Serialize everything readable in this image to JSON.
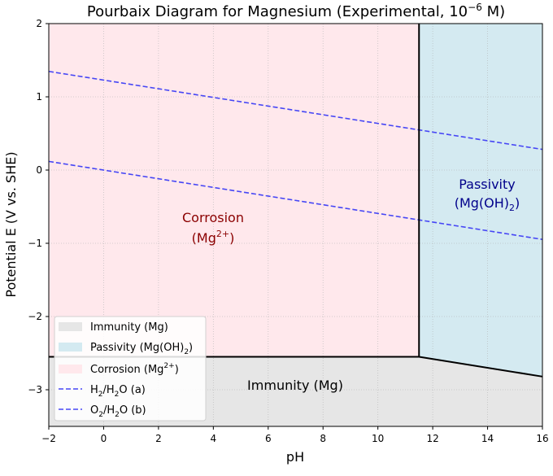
{
  "chart_data": {
    "type": "area",
    "title": {
      "main": "Pourbaix Diagram for Magnesium (Experimental, 10",
      "sup": "−6",
      "tail": " M)"
    },
    "xlabel": "pH",
    "ylabel": "Potential E (V vs. SHE)",
    "xlim": [
      -2,
      16
    ],
    "ylim": [
      -3.5,
      2
    ],
    "xticks": [
      -2,
      0,
      2,
      4,
      6,
      8,
      10,
      12,
      14,
      16
    ],
    "yticks": [
      -3,
      -2,
      -1,
      0,
      1,
      2
    ],
    "grid": true,
    "colors": {
      "immunity": "#e6e6e6",
      "passivity": "#d4eaf1",
      "corrosion": "#ffe8ec",
      "water_line": "#4646f5",
      "boundary": "#000000",
      "corrosion_text": "#8b0000",
      "passivity_text": "#00008b"
    },
    "boundaries": {
      "mg_mg2_E": -2.55,
      "hydrolysis_pH": 11.5,
      "mg_mgoh2_line": [
        [
          11.5,
          -2.55
        ],
        [
          16,
          -2.82
        ]
      ]
    },
    "series": [
      {
        "name": "H2/H2O (a)",
        "x": [
          -2,
          16
        ],
        "y": [
          0.118,
          -0.947
        ]
      },
      {
        "name": "O2/H2O (b)",
        "x": [
          -2,
          16
        ],
        "y": [
          1.347,
          0.282
        ]
      }
    ],
    "regions": {
      "corrosion": {
        "label": "Corrosion",
        "species": "(Mg",
        "sup": "2+",
        "close": ")"
      },
      "passivity": {
        "label": "Passivity",
        "species": "(Mg(OH)",
        "sub": "2",
        "close": ")"
      },
      "immunity": {
        "label": "Immunity (Mg)"
      }
    },
    "legend": {
      "placement": "lower-left",
      "entries": [
        {
          "text": "Immunity (Mg)",
          "kind": "patch",
          "color": "#e6e6e6"
        },
        {
          "text": "Passivity (Mg(OH)",
          "sub": "2",
          "tail": ")",
          "kind": "patch",
          "color": "#d4eaf1"
        },
        {
          "text": "Corrosion (Mg",
          "sup": "2+",
          "tail": ")",
          "kind": "patch",
          "color": "#ffe8ec"
        },
        {
          "text": "H",
          "sub": "2",
          "text2": "/H",
          "sub2": "2",
          "tail": "O (a)",
          "kind": "line"
        },
        {
          "text": "O",
          "sub": "2",
          "text2": "/H",
          "sub2": "2",
          "tail": "O (b)",
          "kind": "line"
        }
      ]
    }
  }
}
